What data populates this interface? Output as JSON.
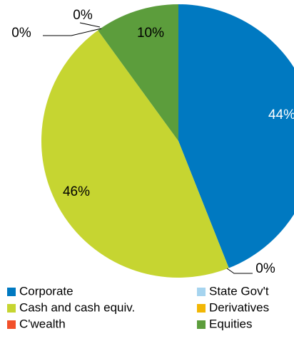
{
  "chart_data": {
    "type": "pie",
    "categories": [
      "Corporate",
      "State Gov't",
      "Cash and cash equiv.",
      "Derivatives",
      "C'wealth",
      "Equities"
    ],
    "values": [
      44,
      0,
      46,
      0,
      0,
      10
    ],
    "value_labels": [
      "44%",
      "0%",
      "46%",
      "0%",
      "0%",
      "10%"
    ],
    "colors": [
      "#0079c1",
      "#a6d4ef",
      "#c6d531",
      "#f2b705",
      "#f2502a",
      "#5c9d3c"
    ]
  }
}
